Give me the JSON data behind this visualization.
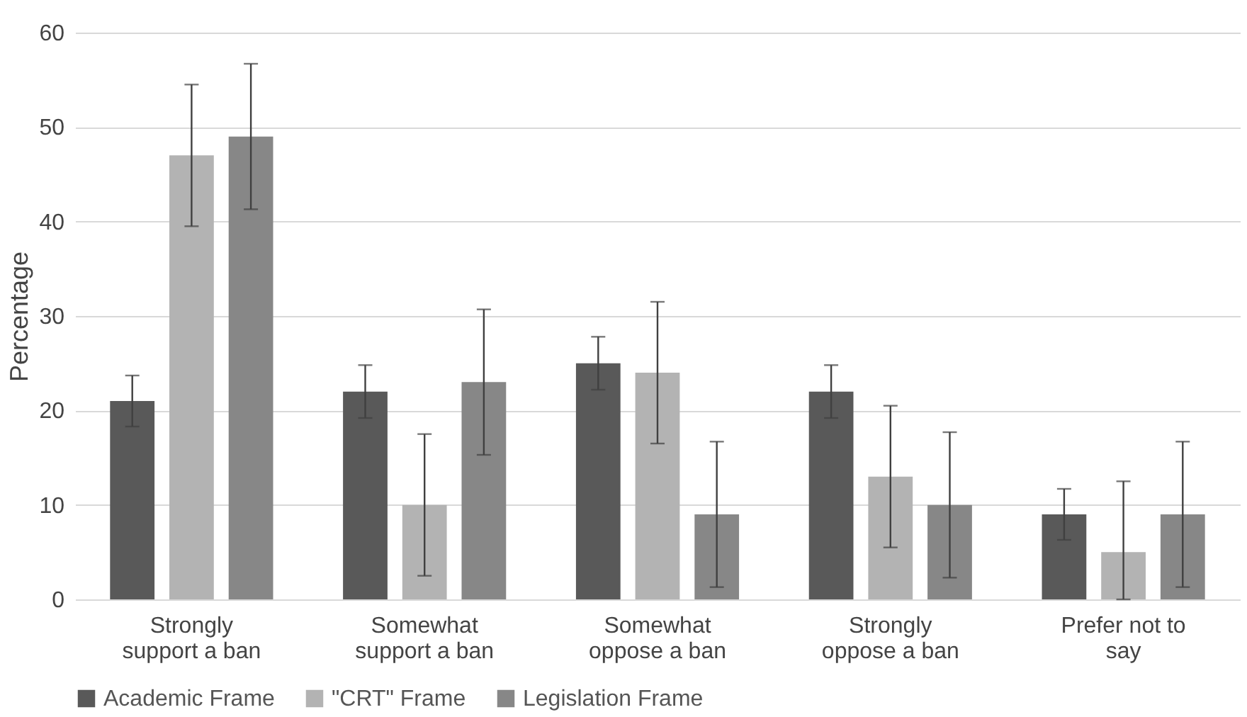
{
  "chart_data": {
    "type": "bar",
    "ylabel": "Percentage",
    "categories": [
      "Strongly support a ban",
      "Somewhat support a ban",
      "Somewhat oppose a ban",
      "Strongly oppose a ban",
      "Prefer not to say"
    ],
    "series": [
      {
        "name": "Academic Frame",
        "color": "#595959",
        "values": [
          21,
          22,
          25,
          22,
          9
        ],
        "errors": [
          2.7,
          2.8,
          2.8,
          2.8,
          2.7
        ]
      },
      {
        "name": "\"CRT\" Frame",
        "color": "#b3b3b3",
        "values": [
          47,
          10,
          24,
          13,
          5
        ],
        "errors": [
          7.5,
          7.5,
          7.5,
          7.5,
          [
            0,
            12.5
          ]
        ]
      },
      {
        "name": "Legislation Frame",
        "color": "#878787",
        "values": [
          49,
          23,
          9,
          10,
          9
        ],
        "errors": [
          7.7,
          7.7,
          7.7,
          7.7,
          7.7
        ]
      }
    ],
    "ylim": [
      0,
      60
    ],
    "yticks": [
      0,
      10,
      20,
      30,
      40,
      50,
      60
    ],
    "grid": "y",
    "legend": "bottom"
  }
}
